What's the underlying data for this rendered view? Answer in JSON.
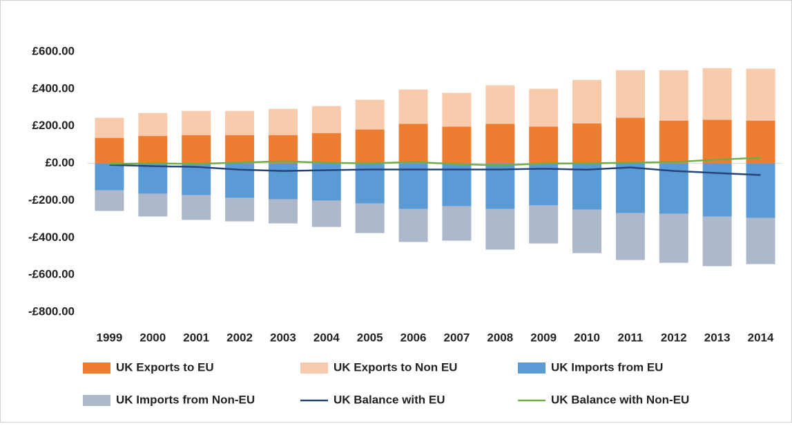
{
  "chart_data": {
    "type": "bar",
    "categories": [
      "1999",
      "2000",
      "2001",
      "2002",
      "2003",
      "2004",
      "2005",
      "2006",
      "2007",
      "2008",
      "2009",
      "2010",
      "2011",
      "2012",
      "2013",
      "2014"
    ],
    "series": [
      {
        "name": "UK Exports to EU",
        "color": "#ed7d31",
        "values": [
          137,
          148,
          152,
          152,
          152,
          163,
          182,
          212,
          197,
          212,
          197,
          215,
          245,
          230,
          234,
          230
        ]
      },
      {
        "name": "UK Exports to Non EU",
        "color": "#f8cbad",
        "values": [
          108,
          123,
          130,
          130,
          141,
          145,
          160,
          185,
          182,
          208,
          204,
          234,
          256,
          271,
          278,
          279
        ]
      },
      {
        "name": "UK Imports from EU",
        "color": "#5b9bd5",
        "values": [
          -145,
          -163,
          -171,
          -186,
          -193,
          -200,
          -215,
          -245,
          -230,
          -245,
          -226,
          -249,
          -267,
          -271,
          -286,
          -293
        ]
      },
      {
        "name": "UK Imports from Non-EU",
        "color": "#adb9ca",
        "values": [
          -111,
          -123,
          -133,
          -126,
          -130,
          -142,
          -160,
          -178,
          -186,
          -219,
          -205,
          -234,
          -253,
          -264,
          -267,
          -249
        ]
      },
      {
        "name": "UK Balance with EU",
        "color": "#264478",
        "type": "line",
        "values": [
          -8,
          -15,
          -19,
          -34,
          -41,
          -37,
          -33,
          -33,
          -33,
          -33,
          -29,
          -34,
          -22,
          -41,
          -52,
          -63
        ]
      },
      {
        "name": "UK Balance with Non-EU",
        "color": "#70ad47",
        "type": "line",
        "values": [
          -3,
          0,
          -3,
          4,
          11,
          3,
          0,
          7,
          -4,
          -11,
          -1,
          0,
          3,
          7,
          20,
          30
        ]
      }
    ],
    "stacked": true,
    "ylim": [
      -800,
      600
    ],
    "yticks": [
      {
        "value": -800,
        "label": "-£800.00"
      },
      {
        "value": -600,
        "label": "-£600.00"
      },
      {
        "value": -400,
        "label": "-£400.00"
      },
      {
        "value": -200,
        "label": "-£200.00"
      },
      {
        "value": 0,
        "label": "£0.00"
      },
      {
        "value": 200,
        "label": "£200.00"
      },
      {
        "value": 400,
        "label": "£400.00"
      },
      {
        "value": 600,
        "label": "£600.00"
      }
    ],
    "grid": false,
    "legend": "bottom"
  }
}
